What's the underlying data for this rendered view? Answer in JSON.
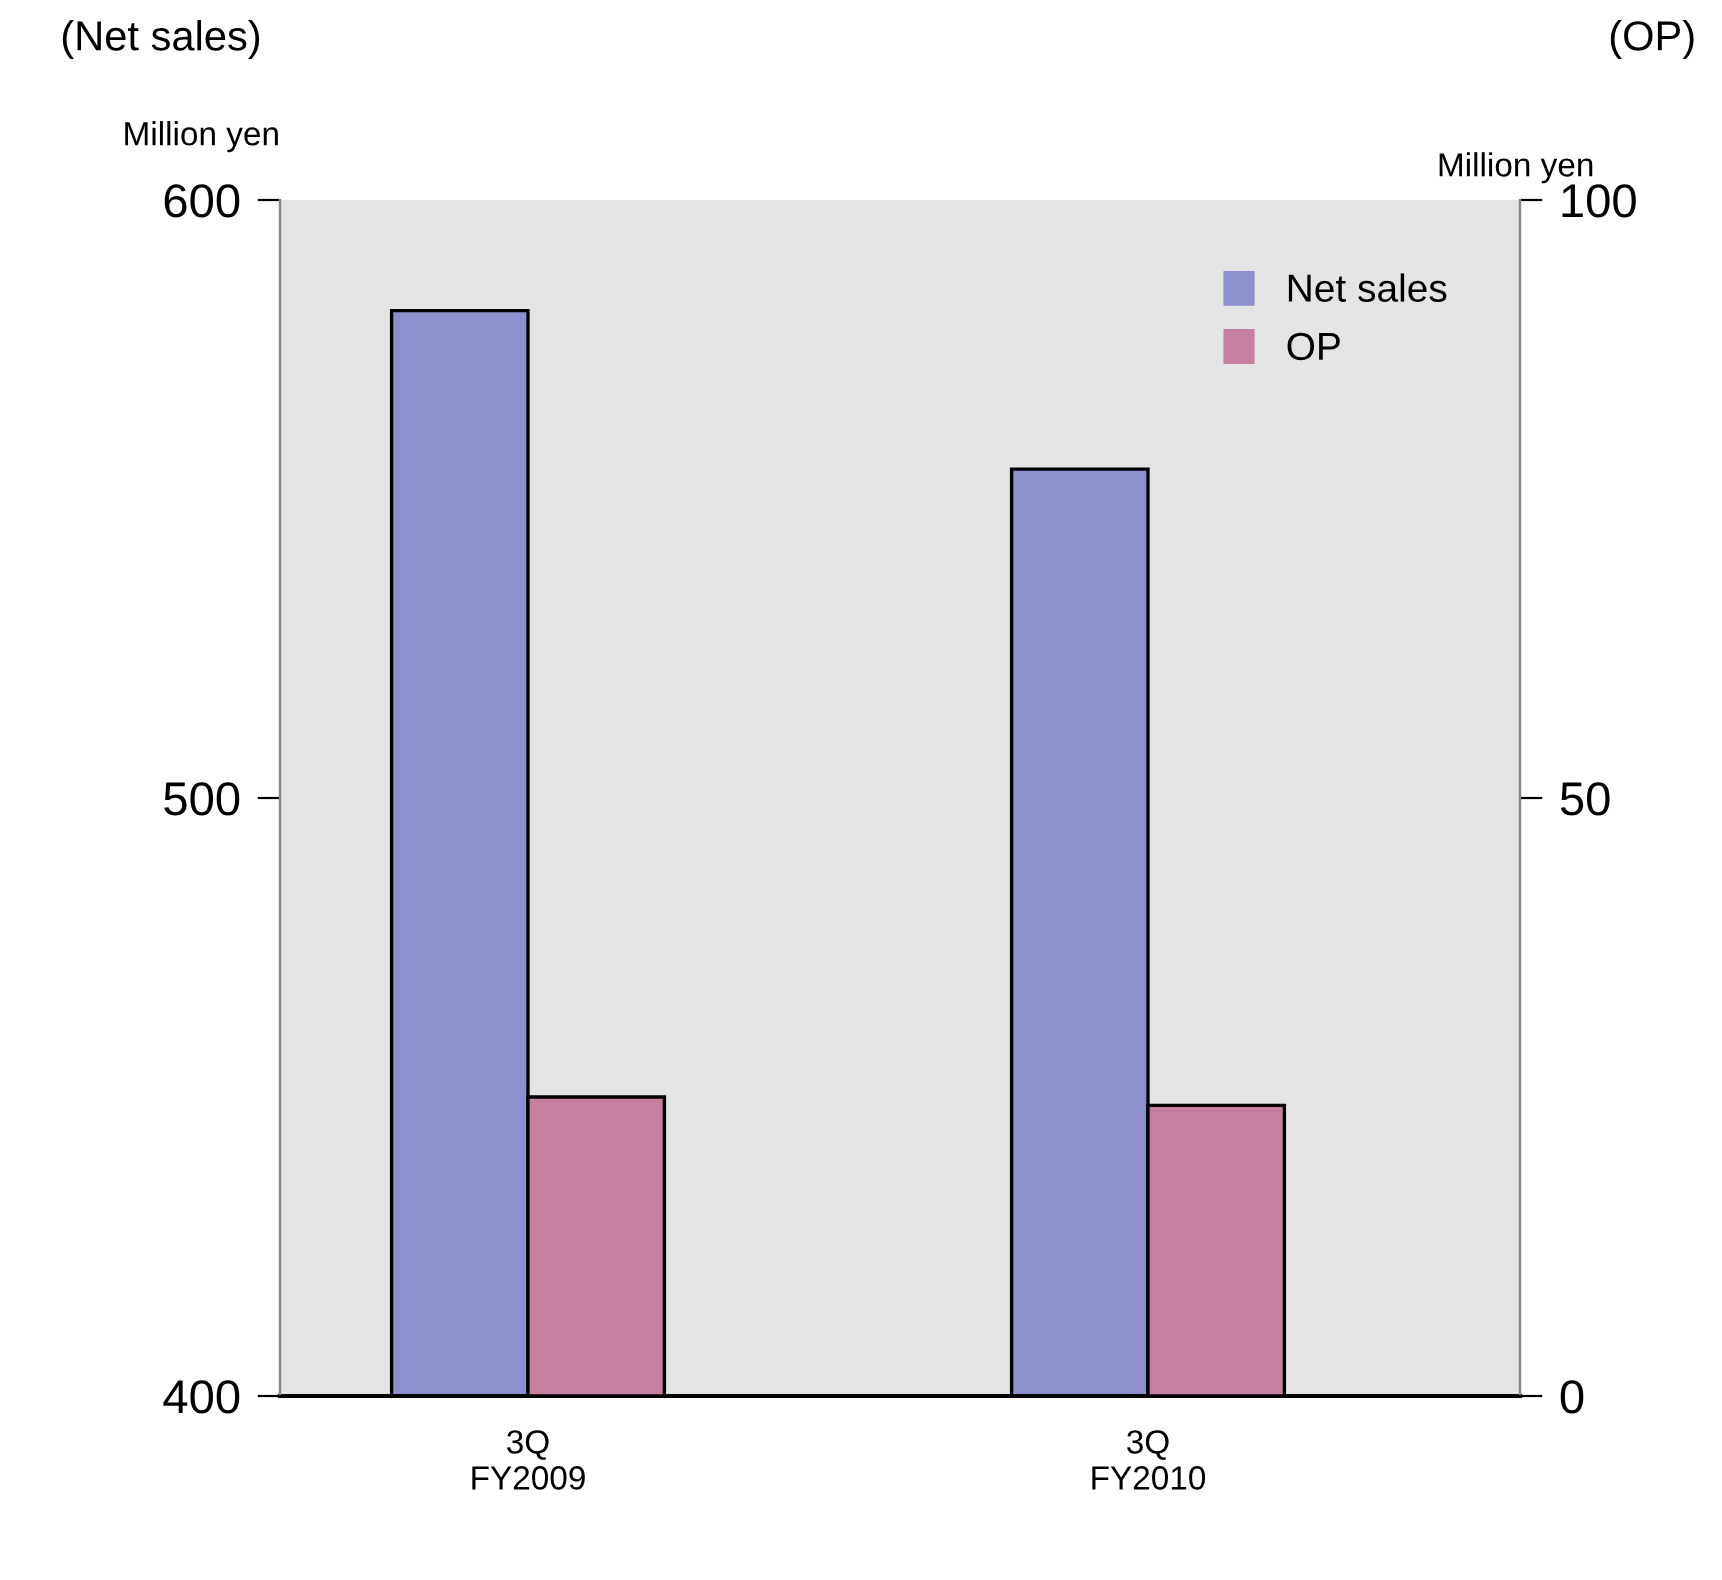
{
  "chart_data": {
    "type": "bar",
    "categories": [
      "3Q\nFY2009",
      "3Q\nFY2010"
    ],
    "series": [
      {
        "name": "Net sales",
        "color": "#8c90cc",
        "values": [
          581.5,
          555
        ]
      },
      {
        "name": "OP",
        "color": "#c4809e",
        "values": [
          25,
          24.3
        ],
        "axis": "y2"
      }
    ],
    "ylabel": "Million yen",
    "y2label": "Million yen",
    "ylim": [
      400,
      600
    ],
    "yticks": [
      400,
      500,
      600
    ],
    "y2lim": [
      0,
      100
    ],
    "y2ticks": [
      0,
      50,
      100
    ],
    "annotations": [
      "(Net sales)",
      "(OP)"
    ],
    "legend": "top right",
    "grid": false
  }
}
